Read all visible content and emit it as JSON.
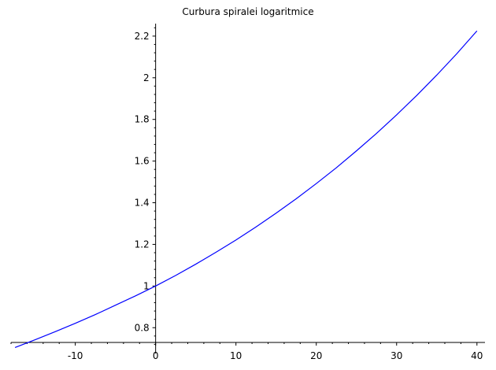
{
  "chart_data": {
    "type": "line",
    "title": "Curbura spiralei logaritmice",
    "xlabel": "",
    "ylabel": "",
    "xlim": [
      -18,
      41
    ],
    "ylim": [
      0.68,
      2.26
    ],
    "grid": false,
    "xticks": [
      -10,
      0,
      10,
      20,
      30,
      40
    ],
    "yticks": [
      0.8,
      1,
      1.2,
      1.4,
      1.6,
      1.8,
      2,
      2.2
    ],
    "series": [
      {
        "color": "#0000ff",
        "x": [
          -17.5,
          -15,
          -12.5,
          -10,
          -7.5,
          -5,
          -2.5,
          0,
          2.5,
          5,
          7.5,
          10,
          12.5,
          15,
          17.5,
          20,
          22.5,
          25,
          27.5,
          30,
          32.5,
          35,
          37.5,
          40
        ],
        "y": [
          0.705,
          0.742,
          0.781,
          0.821,
          0.863,
          0.908,
          0.953,
          1.0,
          1.051,
          1.105,
          1.162,
          1.221,
          1.284,
          1.35,
          1.419,
          1.492,
          1.568,
          1.649,
          1.733,
          1.822,
          1.915,
          2.013,
          2.116,
          2.225
        ]
      }
    ]
  }
}
